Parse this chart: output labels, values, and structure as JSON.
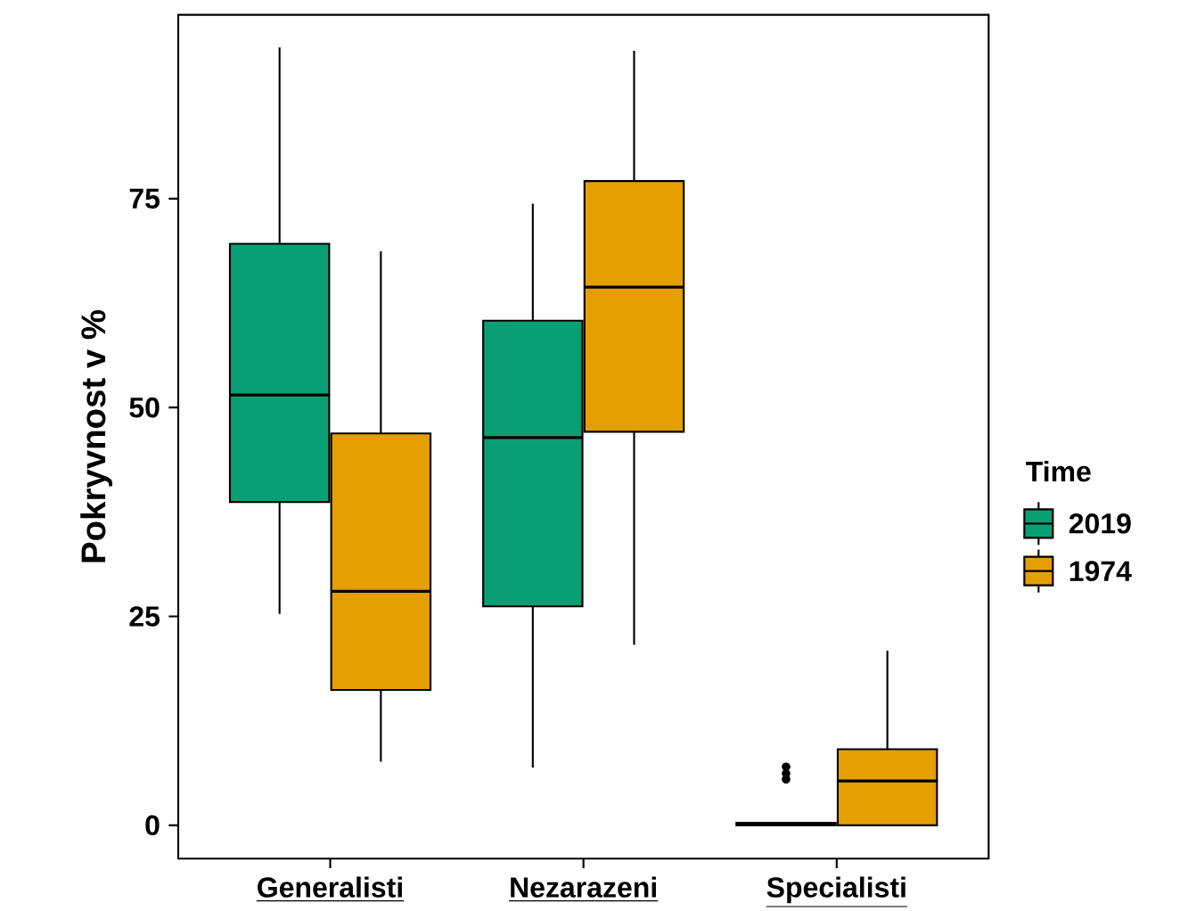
{
  "chart_data": {
    "type": "box",
    "categories": [
      "Generalisti",
      "Nezarazeni",
      "Specialisti"
    ],
    "ylabel": "Pokryvnost v %",
    "legend_title": "Time",
    "legend": "right",
    "ylim": [
      -4,
      97
    ],
    "yticks": [
      0,
      25,
      50,
      75
    ],
    "grid": false,
    "series": [
      {
        "name": "2019",
        "color": "#0a9e73",
        "boxes": [
          {
            "low": 25.3,
            "q1": 38.7,
            "median": 51.5,
            "q3": 69.6,
            "high": 93.1
          },
          {
            "low": 6.9,
            "q1": 26.2,
            "median": 46.4,
            "q3": 60.4,
            "high": 74.4
          },
          {
            "low": 0,
            "q1": 0,
            "median": 0.2,
            "q3": 0.3,
            "high": 0.3,
            "outliers": [
              5.5,
              6.2,
              7
            ]
          }
        ]
      },
      {
        "name": "1974",
        "color": "#e69f00",
        "boxes": [
          {
            "low": 7.6,
            "q1": 16.2,
            "median": 28,
            "q3": 46.9,
            "high": 68.7
          },
          {
            "low": 21.6,
            "q1": 47.1,
            "median": 64.4,
            "q3": 77.1,
            "high": 92.7
          },
          {
            "low": 0,
            "q1": 0,
            "median": 5.3,
            "q3": 9.1,
            "high": 20.9
          }
        ]
      }
    ]
  }
}
